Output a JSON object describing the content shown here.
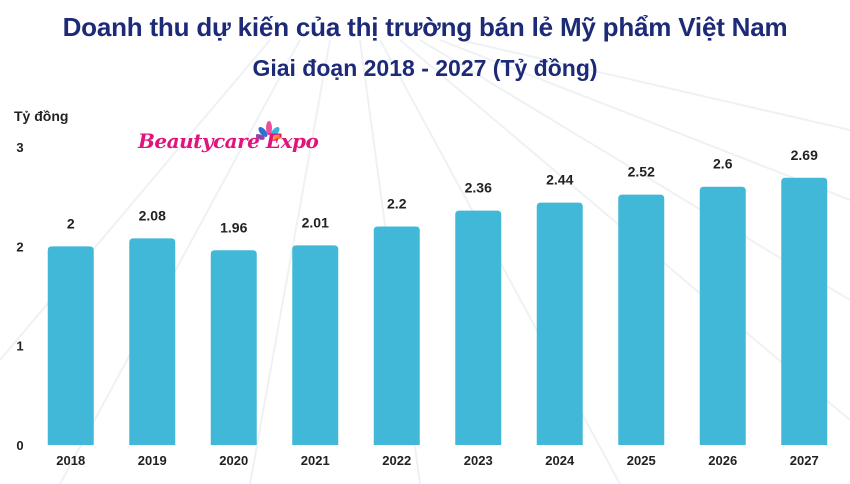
{
  "title": "Doanh thu dự kiến của thị trường bán lẻ Mỹ phẩm Việt Nam",
  "subtitle": "Giai đoạn 2018 - 2027 (Tỷ đồng)",
  "logo_text": "BeautycareExpo",
  "colors": {
    "bar": "#42b8d9",
    "title": "#1c2a78",
    "logo": "#e0147c"
  },
  "chart_data": {
    "type": "bar",
    "title": "Doanh thu dự kiến của thị trường bán lẻ Mỹ phẩm Việt Nam",
    "subtitle": "Giai đoạn 2018 - 2027 (Tỷ đồng)",
    "xlabel": "",
    "ylabel": "Tỷ đồng",
    "categories": [
      "2018",
      "2019",
      "2020",
      "2021",
      "2022",
      "2023",
      "2024",
      "2025",
      "2026",
      "2027"
    ],
    "values": [
      2,
      2.08,
      1.96,
      2.01,
      2.2,
      2.36,
      2.44,
      2.52,
      2.6,
      2.69
    ],
    "value_labels": [
      "2",
      "2.08",
      "1.96",
      "2.01",
      "2.2",
      "2.36",
      "2.44",
      "2.52",
      "2.6",
      "2.69"
    ],
    "yticks": [
      "0",
      "1",
      "2",
      "3"
    ],
    "ylim": [
      0,
      3
    ],
    "grid": false,
    "legend": "none"
  }
}
